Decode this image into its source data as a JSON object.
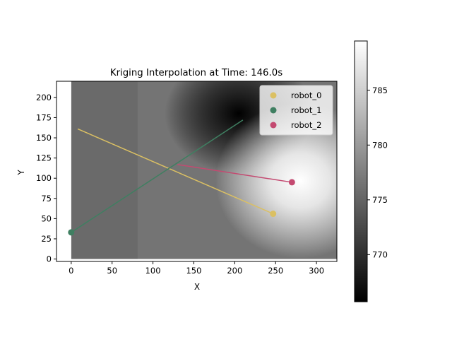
{
  "chart_data": {
    "type": "heatmap",
    "title": "Kriging Interpolation at Time: 146.0s",
    "xlabel": "X",
    "ylabel": "Y",
    "xlim": [
      -18,
      325
    ],
    "ylim": [
      -3,
      220
    ],
    "field_extent": {
      "x": [
        0,
        325
      ],
      "y": [
        0,
        220
      ]
    },
    "xticks": [
      0,
      50,
      100,
      150,
      200,
      250,
      300
    ],
    "yticks": [
      0,
      25,
      50,
      75,
      100,
      125,
      150,
      175,
      200
    ],
    "colorbar": {
      "range": [
        765.7,
        789.5
      ],
      "ticks": [
        770,
        775,
        780,
        785
      ],
      "colormap": "gray"
    },
    "field_features": [
      {
        "x": 205,
        "y": 180,
        "value": 765.7
      },
      {
        "x": 280,
        "y": 97,
        "value": 789.5
      }
    ],
    "field_base_value": 776.5,
    "legend": {
      "position": "upper-right"
    },
    "series": [
      {
        "name": "robot_0",
        "color": "#dbc063",
        "path": [
          [
            8,
            161
          ],
          [
            247,
            56
          ]
        ],
        "current": [
          247,
          56
        ]
      },
      {
        "name": "robot_1",
        "color": "#3f7f61",
        "path": [
          [
            0,
            33
          ],
          [
            210,
            172
          ]
        ],
        "current": [
          0,
          33
        ]
      },
      {
        "name": "robot_2",
        "color": "#c44a71",
        "path": [
          [
            130,
            117
          ],
          [
            270,
            95
          ]
        ],
        "current": [
          270,
          95
        ]
      }
    ]
  }
}
